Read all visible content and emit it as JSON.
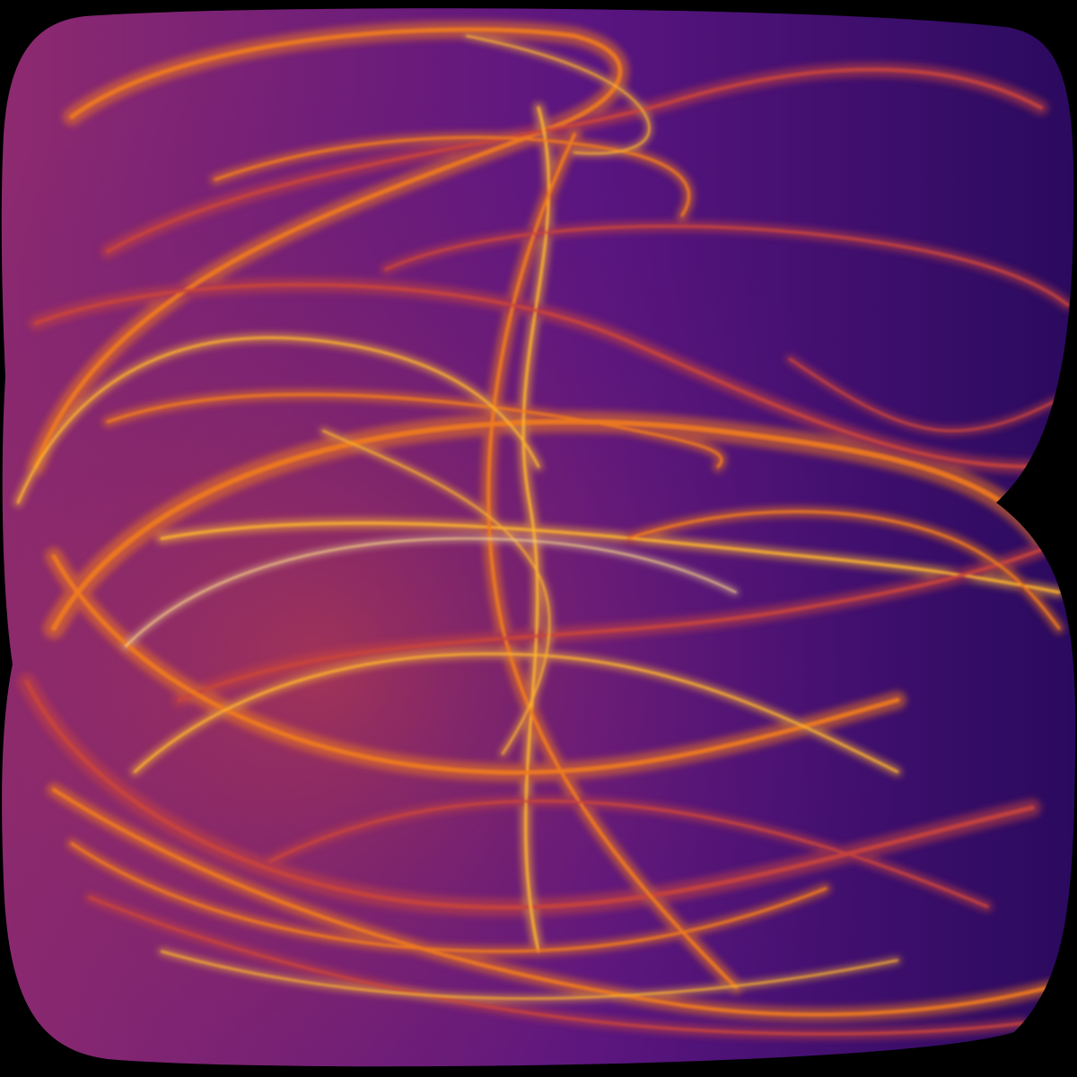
{
  "artwork": {
    "subject": "strange-attractor-density-render",
    "palette": {
      "background": "#000000",
      "deep": "#2a0a5e",
      "body": "#5a1580",
      "mid": "#8e2a6f",
      "warm": "#c8443c",
      "hot": "#f07a1c",
      "highlight": "#ffb52e",
      "peak": "#ffe08a"
    }
  }
}
